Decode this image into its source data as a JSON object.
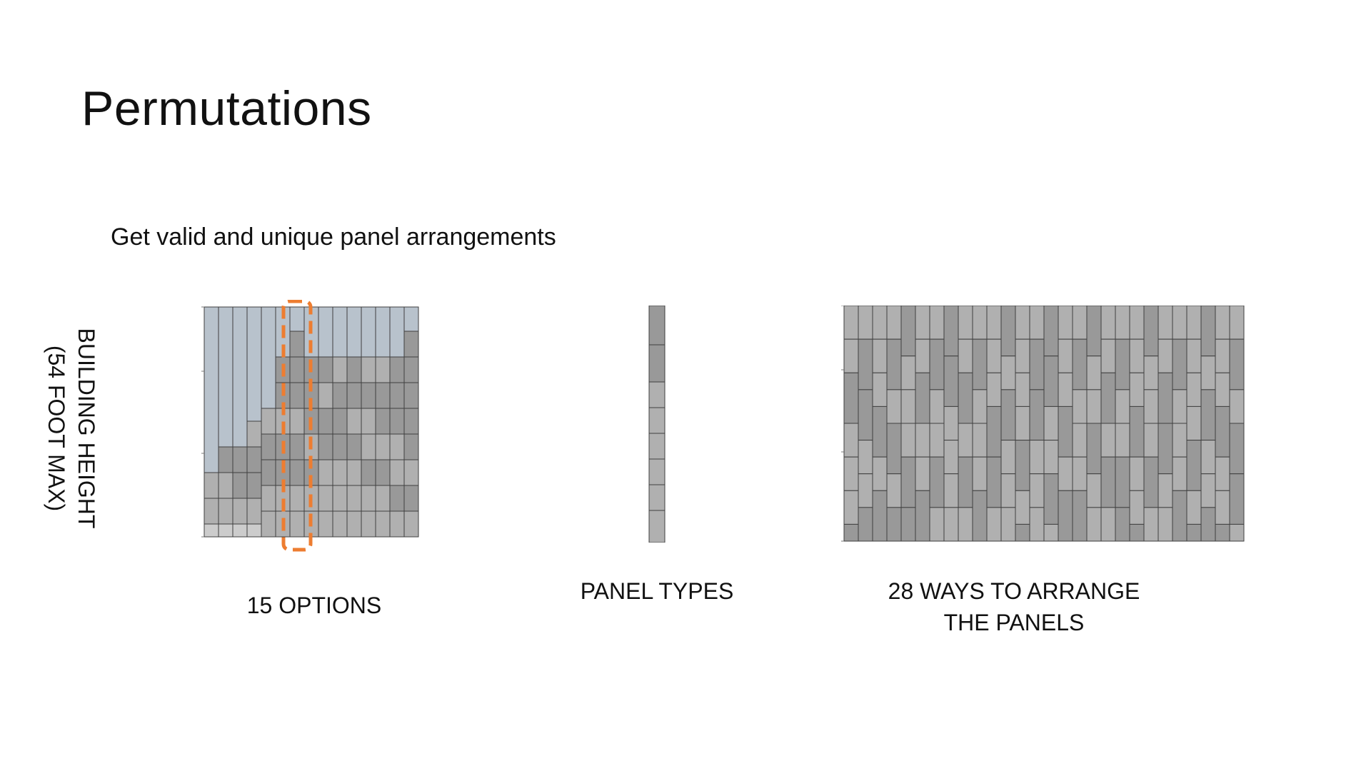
{
  "slide": {
    "title": "Permutations",
    "subtitle": "Get valid and unique panel arrangements"
  },
  "left_panel": {
    "caption": "15 OPTIONS",
    "axis_label_line1": "BUILDING HEIGHT",
    "axis_label_line2": "(54 FOOT MAX)",
    "highlight_color": "#ED7D31"
  },
  "middle_panel": {
    "caption": "PANEL TYPES"
  },
  "right_panel": {
    "caption_line1": "28 WAYS TO ARRANGE",
    "caption_line2": "THE PANELS"
  },
  "colors": {
    "dark_panel": "#999999",
    "medium_panel": "#b0b0b0",
    "light_panel": "#cccccc",
    "empty_panel": "#b8c2cc",
    "grid_line": "#3f3f3f"
  }
}
